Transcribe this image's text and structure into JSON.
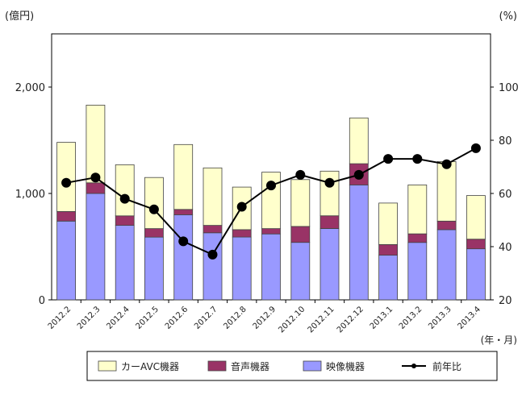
{
  "chart_data": {
    "type": "bar",
    "stacked": true,
    "categories": [
      "2012.2",
      "2012.3",
      "2012.4",
      "2012.5",
      "2012.6",
      "2012.7",
      "2012.8",
      "2012.9",
      "2012.10",
      "2012.11",
      "2012.12",
      "2013.1",
      "2013.2",
      "2013.3",
      "2013.4"
    ],
    "series": [
      {
        "name": "映像機器",
        "color": "#9999ff",
        "values": [
          740,
          1000,
          700,
          590,
          800,
          630,
          590,
          620,
          540,
          670,
          1080,
          420,
          540,
          660,
          480
        ]
      },
      {
        "name": "音声機器",
        "color": "#993366",
        "values": [
          90,
          100,
          90,
          80,
          50,
          70,
          70,
          50,
          150,
          120,
          200,
          100,
          80,
          80,
          90
        ]
      },
      {
        "name": "カーAVC機器",
        "color": "#ffffcc",
        "values": [
          650,
          730,
          480,
          480,
          610,
          540,
          400,
          530,
          440,
          420,
          430,
          390,
          460,
          560,
          410
        ]
      }
    ],
    "line_series": {
      "name": "前年比",
      "color": "#000000",
      "axis": "right",
      "values": [
        64,
        66,
        58,
        54,
        42,
        37,
        55,
        63,
        67,
        64,
        67,
        73,
        73,
        71,
        77
      ]
    },
    "y_left": {
      "label": "(億円)",
      "min": 0,
      "max": 2500,
      "ticks": [
        0,
        1000,
        2000
      ],
      "tick_labels": [
        "0",
        "1,000",
        "2,000"
      ]
    },
    "y_right": {
      "label": "(%)",
      "min": 20,
      "max": 120,
      "ticks": [
        20,
        40,
        60,
        80,
        100
      ],
      "tick_labels": [
        "20",
        "40",
        "60",
        "80",
        "100"
      ]
    },
    "x_unit_label": "(年・月)",
    "legend": {
      "position": "bottom",
      "order": [
        "カーAVC機器",
        "音声機器",
        "映像機器",
        "前年比"
      ]
    },
    "grid": false
  }
}
